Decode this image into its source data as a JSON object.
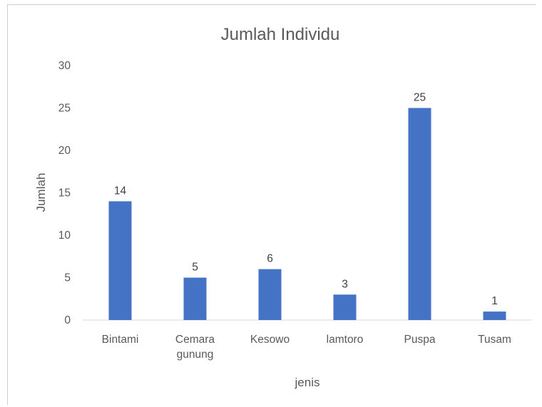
{
  "chart_data": {
    "type": "bar",
    "title": "Jumlah Individu",
    "xlabel": "jenis",
    "ylabel": "Jumlah",
    "categories": [
      [
        "Bintami"
      ],
      [
        "Cemara",
        "gunung"
      ],
      [
        "Kesowo"
      ],
      [
        "lamtoro"
      ],
      [
        "Puspa"
      ],
      [
        "Tusam"
      ]
    ],
    "values": [
      14,
      5,
      6,
      3,
      25,
      1
    ],
    "ylim": [
      0,
      30
    ],
    "yticks": [
      0,
      5,
      10,
      15,
      20,
      25,
      30
    ],
    "bar_color": "#4472c4",
    "grid": false,
    "legend": false,
    "data_labels": true
  }
}
